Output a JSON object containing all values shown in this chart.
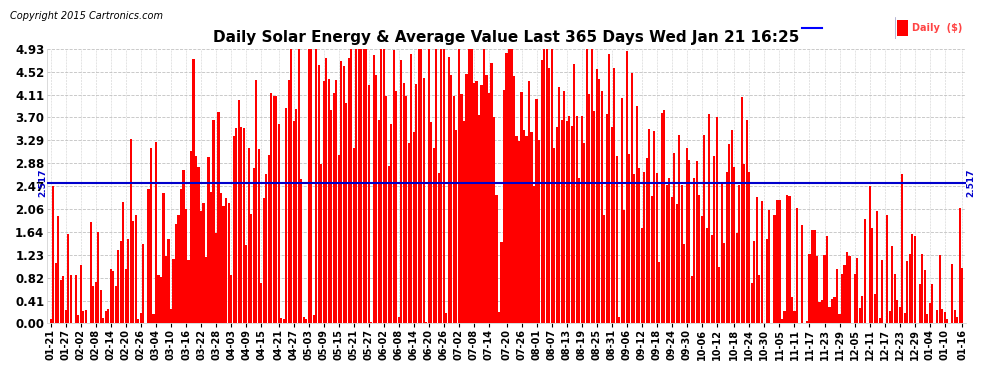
{
  "title": "Daily Solar Energy & Average Value Last 365 Days Wed Jan 21 16:25",
  "copyright_text": "Copyright 2015 Cartronics.com",
  "average_value": 2.517,
  "average_label": "2.517",
  "ylim": [
    0.0,
    4.93
  ],
  "yticks": [
    0.0,
    0.41,
    0.82,
    1.23,
    1.64,
    2.06,
    2.47,
    2.88,
    3.29,
    3.7,
    4.11,
    4.52,
    4.93
  ],
  "bar_color": "#ff0000",
  "avg_line_color": "#0000cc",
  "background_color": "#ffffff",
  "plot_bg_color": "#ffffff",
  "grid_color": "#bbbbbb",
  "title_color": "#000000",
  "fig_width": 9.9,
  "fig_height": 3.75,
  "x_labels": [
    "01-21",
    "01-27",
    "02-02",
    "02-08",
    "02-14",
    "02-20",
    "02-26",
    "03-04",
    "03-10",
    "03-16",
    "03-22",
    "03-28",
    "04-03",
    "04-09",
    "04-15",
    "04-21",
    "04-27",
    "05-03",
    "05-09",
    "05-15",
    "05-21",
    "05-27",
    "06-02",
    "06-08",
    "06-14",
    "06-20",
    "06-26",
    "07-02",
    "07-08",
    "07-14",
    "07-20",
    "07-26",
    "08-01",
    "08-07",
    "08-13",
    "08-19",
    "08-25",
    "08-31",
    "09-06",
    "09-12",
    "09-18",
    "09-24",
    "09-30",
    "10-06",
    "10-12",
    "10-18",
    "10-24",
    "10-30",
    "11-05",
    "11-11",
    "11-17",
    "11-23",
    "11-29",
    "12-05",
    "12-11",
    "12-17",
    "12-23",
    "12-29",
    "01-04",
    "01-10",
    "01-16"
  ]
}
